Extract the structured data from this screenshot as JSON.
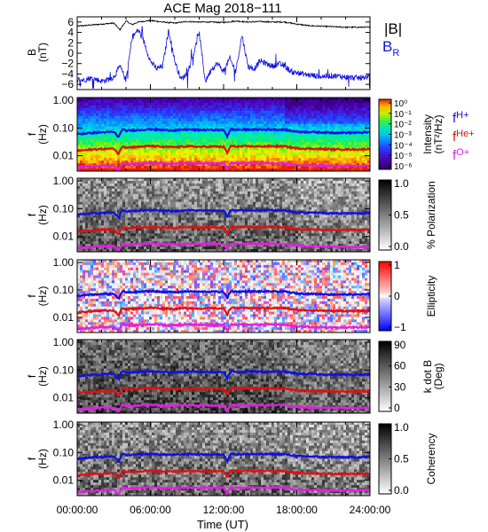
{
  "title": "ACE Mag 2018−111",
  "xaxis": {
    "label": "Time (UT)",
    "ticks": [
      "00:00:00",
      "06:00:00",
      "12:00:00",
      "18:00:00",
      "24:00:00"
    ],
    "range_hours": [
      0,
      24
    ]
  },
  "chart_data": [
    {
      "type": "line",
      "panel": "magnetic-field",
      "ylabel": "B",
      "yunit": "(nT)",
      "ylim": [
        -7,
        7
      ],
      "yticks": [
        "6",
        "4",
        "2",
        "0",
        "−2",
        "−4",
        "−6"
      ],
      "series": [
        {
          "name": "|B|",
          "color": "#000000",
          "x_hours": [
            0,
            1,
            2,
            2.5,
            3,
            3.5,
            4,
            4.5,
            5,
            6,
            7,
            8,
            9,
            10,
            11,
            12,
            13,
            14,
            15,
            16,
            17,
            18,
            19,
            20,
            21,
            22,
            23,
            24
          ],
          "values": [
            5.2,
            5.4,
            5.6,
            5.7,
            5.8,
            4.5,
            6.2,
            5.5,
            6.0,
            6.3,
            6.0,
            5.8,
            6.1,
            6.0,
            6.0,
            5.9,
            6.2,
            6.0,
            6.1,
            6.0,
            6.0,
            5.6,
            5.3,
            5.2,
            5.1,
            5.0,
            5.0,
            5.0
          ]
        },
        {
          "name": "B",
          "sub": "R",
          "color": "#1010e0",
          "x_hours": [
            0,
            0.5,
            1,
            1.5,
            2,
            2.5,
            3,
            3.5,
            4,
            4.5,
            5,
            5.5,
            6,
            6.5,
            7,
            7.5,
            8,
            8.5,
            9,
            9.5,
            10,
            10.5,
            11,
            11.5,
            12,
            12.5,
            13,
            13.5,
            14,
            14.5,
            15,
            15.5,
            16,
            16.5,
            17,
            17.5,
            18,
            18.5,
            19,
            20,
            21,
            22,
            23,
            24
          ],
          "values": [
            -5.0,
            -5.2,
            -4.8,
            -5.0,
            -5.4,
            -5.1,
            -4.6,
            -2.5,
            -5.2,
            3.0,
            4.5,
            2.0,
            -1.5,
            -3.0,
            -2.5,
            4.5,
            -1.5,
            -5.0,
            -4.0,
            -0.5,
            4.0,
            -5.5,
            -3.0,
            -2.0,
            -3.5,
            -1.0,
            -3.5,
            3.5,
            -2.5,
            -3.0,
            -1.5,
            -2.0,
            -2.5,
            -2.0,
            -2.5,
            -3.5,
            -3.8,
            -4.0,
            -4.2,
            -4.5,
            -4.3,
            -4.6,
            -4.8,
            -4.5
          ]
        }
      ]
    },
    {
      "type": "heatmap",
      "panel": "intensity",
      "ylabel": "f",
      "yunit": "(Hz)",
      "scale": "log",
      "yticks": [
        "1.00",
        "0.10",
        "0.01"
      ],
      "colorbar": {
        "label": "Intensity",
        "unit": "(nT²/Hz)",
        "ticks": [
          "10⁰",
          "10⁻¹",
          "10⁻²",
          "10⁻³",
          "10⁻⁴",
          "10⁻⁵",
          "10⁻⁶"
        ],
        "colors": [
          "#2a005e",
          "#5a00b0",
          "#3030ff",
          "#00a0ff",
          "#00e0e0",
          "#00ff80",
          "#80ff00",
          "#ffff00",
          "#ffa000",
          "#ff3000",
          "#cc0000",
          "#ff40ff"
        ]
      },
      "legend": [
        {
          "text": "f",
          "sub": "H+",
          "color": "#1010e0"
        },
        {
          "text": "f",
          "sub": "He+",
          "color": "#e01010"
        },
        {
          "text": "f",
          "sub": "O+",
          "color": "#e020e0"
        }
      ]
    },
    {
      "type": "heatmap",
      "panel": "polarization",
      "ylabel": "f",
      "yunit": "(Hz)",
      "yticks": [
        "1.00",
        "0.10",
        "0.01"
      ],
      "colorbar": {
        "label": "% Polarization",
        "ticks": [
          "1.0",
          "0.5",
          "0.0"
        ],
        "range": [
          0,
          1
        ]
      }
    },
    {
      "type": "heatmap",
      "panel": "ellipticity",
      "ylabel": "f",
      "yunit": "(Hz)",
      "yticks": [
        "1.00",
        "0.10",
        "0.01"
      ],
      "colorbar": {
        "label": "Ellipticity",
        "ticks": [
          "1",
          "0",
          "−1"
        ],
        "range": [
          -1,
          1
        ]
      }
    },
    {
      "type": "heatmap",
      "panel": "kdotb",
      "ylabel": "f",
      "yunit": "(Hz)",
      "yticks": [
        "1.00",
        "0.10",
        "0.01"
      ],
      "colorbar": {
        "label": "k dot B",
        "unit": "(Deg)",
        "ticks": [
          "90",
          "60",
          "30",
          "0"
        ],
        "range": [
          0,
          90
        ]
      }
    },
    {
      "type": "heatmap",
      "panel": "coherency",
      "ylabel": "f",
      "yunit": "(Hz)",
      "yticks": [
        "1.00",
        "0.10",
        "0.01"
      ],
      "colorbar": {
        "label": "Coherency",
        "ticks": [
          "1.0",
          "0.5",
          "0.0"
        ],
        "range": [
          0,
          1
        ]
      }
    }
  ],
  "gyrofrequencies": {
    "x_hours": [
      0,
      1,
      2,
      3,
      3.4,
      3.7,
      4,
      5,
      6,
      7,
      8,
      9,
      10,
      11,
      12,
      12.3,
      12.6,
      13,
      14,
      15,
      16,
      17,
      17.5,
      18,
      19,
      20,
      21,
      22,
      23,
      24
    ],
    "H+": [
      0.06,
      0.066,
      0.07,
      0.072,
      0.045,
      0.09,
      0.08,
      0.085,
      0.09,
      0.085,
      0.082,
      0.088,
      0.085,
      0.086,
      0.084,
      0.05,
      0.09,
      0.086,
      0.088,
      0.087,
      0.088,
      0.087,
      0.08,
      0.074,
      0.072,
      0.07,
      0.068,
      0.068,
      0.068,
      0.07
    ],
    "He+": [
      0.015,
      0.0165,
      0.0175,
      0.018,
      0.011,
      0.0225,
      0.02,
      0.021,
      0.0225,
      0.021,
      0.0205,
      0.022,
      0.021,
      0.0215,
      0.021,
      0.0125,
      0.0225,
      0.0215,
      0.022,
      0.0217,
      0.022,
      0.0217,
      0.02,
      0.0185,
      0.018,
      0.0175,
      0.017,
      0.017,
      0.017,
      0.0175
    ],
    "O+": [
      0.0038,
      0.0041,
      0.0044,
      0.0045,
      0.003,
      0.0056,
      0.005,
      0.0053,
      0.0056,
      0.0053,
      0.0051,
      0.0055,
      0.0053,
      0.0054,
      0.0053,
      0.0032,
      0.0056,
      0.0054,
      0.0055,
      0.0054,
      0.0055,
      0.0054,
      0.005,
      0.0046,
      0.0045,
      0.0044,
      0.0043,
      0.0043,
      0.0043,
      0.0044
    ]
  }
}
